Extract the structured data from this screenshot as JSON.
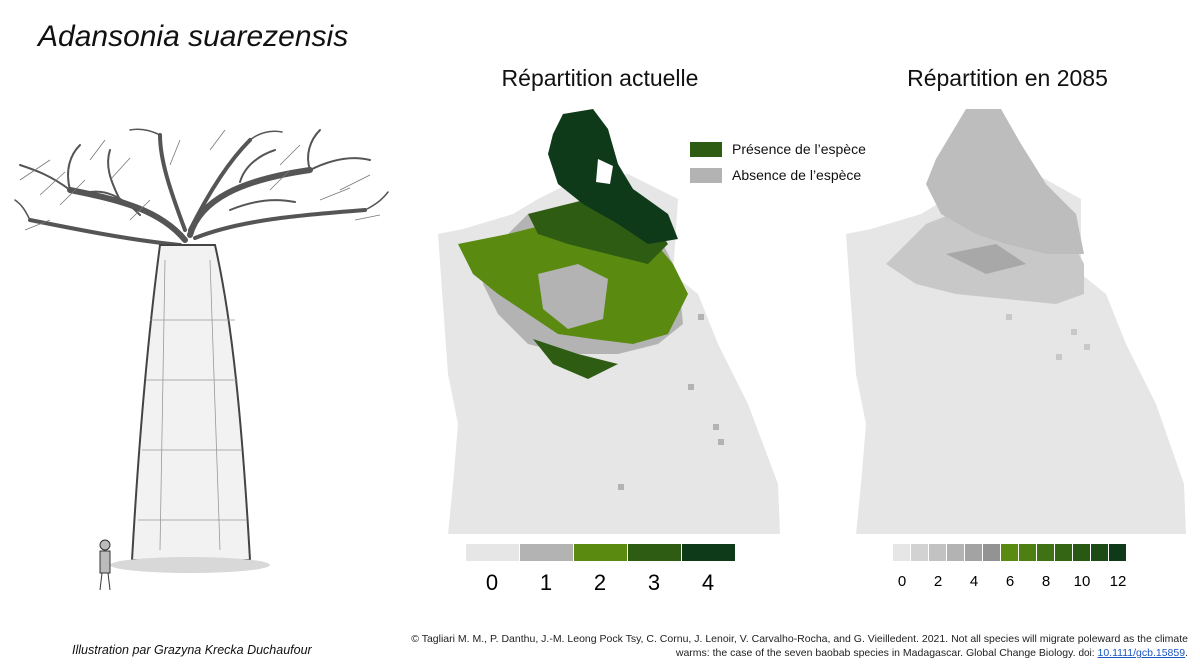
{
  "species_name": "Adansonia suarezensis",
  "illustration_credit": "Illustration par Grazyna Krecka Duchaufour",
  "maps": {
    "current": {
      "title": "Répartition actuelle"
    },
    "future": {
      "title": "Répartition en 2085"
    }
  },
  "legend": {
    "presence": {
      "label": "Présence de l’espèce",
      "color": "#2e5c12"
    },
    "absence": {
      "label": "Absence de l’espèce",
      "color": "#b3b3b3"
    }
  },
  "scale_current": {
    "values": [
      "0",
      "1",
      "2",
      "3",
      "4"
    ],
    "colors": [
      "#e6e6e6",
      "#b3b3b3",
      "#5a8a10",
      "#2e5c12",
      "#0f3a1a"
    ]
  },
  "scale_future": {
    "tick_labels": [
      "0",
      "2",
      "4",
      "6",
      "8",
      "10",
      "12"
    ],
    "colors": [
      "#e6e6e6",
      "#d2d2d2",
      "#c2c2c2",
      "#b3b3b3",
      "#a3a3a3",
      "#939393",
      "#5a8a10",
      "#4d7f12",
      "#3f7214",
      "#336514",
      "#275814",
      "#1c4b16",
      "#0f3a1a"
    ]
  },
  "citation": {
    "text": "© Tagliari M. M., P. Danthu, J.-M. Leong Pock Tsy, C. Cornu, J. Lenoir, V. Carvalho-Rocha, and G. Vieilledent. 2021. Not all species will migrate poleward as the climate warms: the case of the seven baobab species in Madagascar. Global Change Biology.",
    "doi_label": "doi:",
    "doi": "10.1111/gcb.15859",
    "end": "."
  }
}
